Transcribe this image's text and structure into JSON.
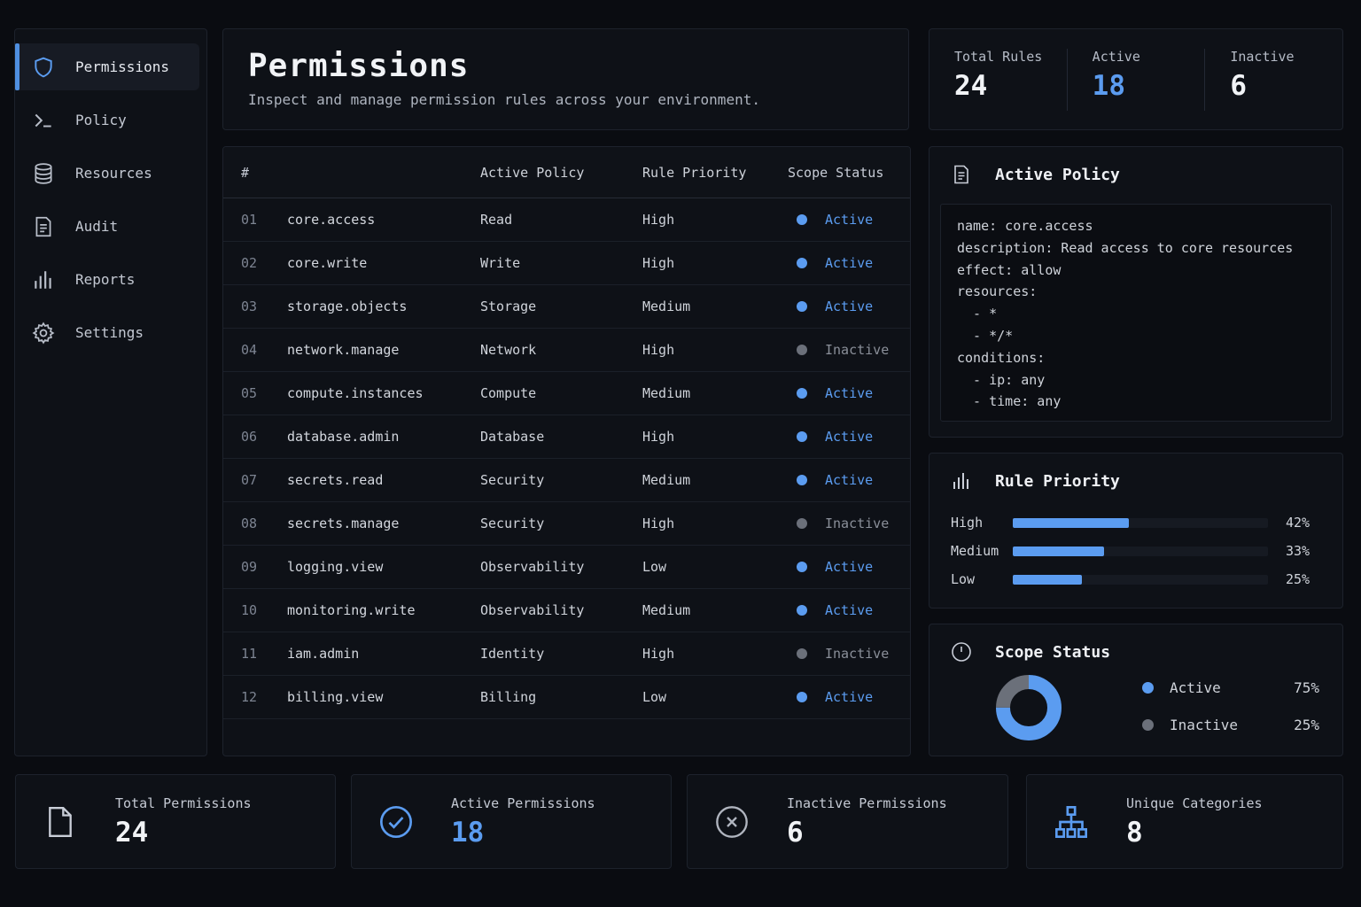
{
  "sidebar": {
    "items": [
      {
        "label": "Permissions",
        "icon": "shield-icon"
      },
      {
        "label": "Policy",
        "icon": "terminal-icon"
      },
      {
        "label": "Resources",
        "icon": "database-icon"
      },
      {
        "label": "Audit",
        "icon": "document-icon"
      },
      {
        "label": "Reports",
        "icon": "bar-chart-icon"
      },
      {
        "label": "Settings",
        "icon": "gear-icon"
      }
    ],
    "active": "Permissions"
  },
  "header": {
    "title": "Permissions",
    "subtitle": "Inspect and manage permission rules across your environment."
  },
  "top_stats": [
    {
      "label": "Total Rules",
      "value": "24"
    },
    {
      "label": "Active",
      "value": "18"
    },
    {
      "label": "Inactive",
      "value": "6"
    }
  ],
  "table": {
    "headers": {
      "num": "#",
      "policy": "Active Policy",
      "priority": "Rule Priority",
      "status": "Scope Status"
    },
    "rows": [
      {
        "num": "01",
        "name": "core.access",
        "policy": "Read",
        "priority": "High",
        "status": "Active"
      },
      {
        "num": "02",
        "name": "core.write",
        "policy": "Write",
        "priority": "High",
        "status": "Active"
      },
      {
        "num": "03",
        "name": "storage.objects",
        "policy": "Storage",
        "priority": "Medium",
        "status": "Active"
      },
      {
        "num": "04",
        "name": "network.manage",
        "policy": "Network",
        "priority": "High",
        "status": "Inactive"
      },
      {
        "num": "05",
        "name": "compute.instances",
        "policy": "Compute",
        "priority": "Medium",
        "status": "Active"
      },
      {
        "num": "06",
        "name": "database.admin",
        "policy": "Database",
        "priority": "High",
        "status": "Active"
      },
      {
        "num": "07",
        "name": "secrets.read",
        "policy": "Security",
        "priority": "Medium",
        "status": "Active"
      },
      {
        "num": "08",
        "name": "secrets.manage",
        "policy": "Security",
        "priority": "High",
        "status": "Inactive"
      },
      {
        "num": "09",
        "name": "logging.view",
        "policy": "Observability",
        "priority": "Low",
        "status": "Active"
      },
      {
        "num": "10",
        "name": "monitoring.write",
        "policy": "Observability",
        "priority": "Medium",
        "status": "Active"
      },
      {
        "num": "11",
        "name": "iam.admin",
        "policy": "Identity",
        "priority": "High",
        "status": "Inactive"
      },
      {
        "num": "12",
        "name": "billing.view",
        "policy": "Billing",
        "priority": "Low",
        "status": "Active"
      }
    ]
  },
  "active_policy": {
    "title": "Active Policy",
    "code": "name: core.access\ndescription: Read access to core resources\neffect: allow\nresources:\n  - *\n  - */*\nconditions:\n  - ip: any\n  - time: any"
  },
  "rule_priority": {
    "title": "Rule Priority",
    "rows": [
      {
        "label": "High",
        "value": 0.42,
        "pct": "42%"
      },
      {
        "label": "Medium",
        "value": 0.33,
        "pct": "33%"
      },
      {
        "label": "Low",
        "value": 0.25,
        "pct": "25%"
      }
    ]
  },
  "scope_status": {
    "title": "Scope Status",
    "items": [
      {
        "label": "Active",
        "pct": "75%",
        "value": 0.75,
        "color": "#5b9cf0"
      },
      {
        "label": "Inactive",
        "pct": "25%",
        "value": 0.25,
        "color": "#6b707a"
      }
    ]
  },
  "bottom_stats": [
    {
      "label": "Total Permissions",
      "value": "24",
      "icon": "file-icon"
    },
    {
      "label": "Active Permissions",
      "value": "18",
      "icon": "check-circle-icon"
    },
    {
      "label": "Inactive Permissions",
      "value": "6",
      "icon": "x-circle-icon"
    },
    {
      "label": "Unique Categories",
      "value": "8",
      "icon": "hierarchy-icon"
    }
  ],
  "colors": {
    "accent": "#5b9cf0",
    "inactive": "#6b707a",
    "background": "#0a0c11"
  }
}
